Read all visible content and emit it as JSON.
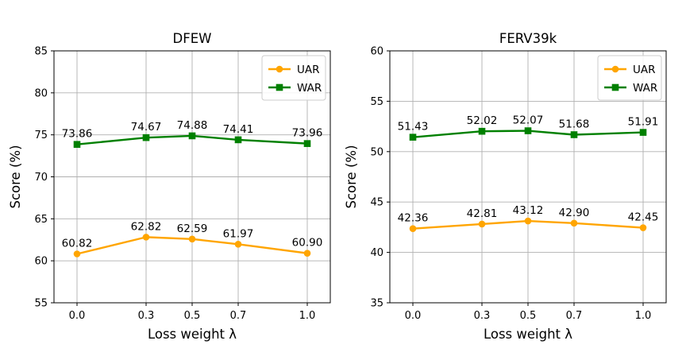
{
  "chart_data": [
    {
      "type": "line",
      "title": "DFEW",
      "xlabel": "Loss weight λ",
      "ylabel": "Score (%)",
      "categories": [
        "0.0",
        "0.3",
        "0.5",
        "0.7",
        "1.0"
      ],
      "x": [
        0.0,
        0.3,
        0.5,
        0.7,
        1.0
      ],
      "ylim": [
        55,
        85
      ],
      "yticks": [
        55,
        60,
        65,
        70,
        75,
        80,
        85
      ],
      "grid": true,
      "legend_position": "top-right",
      "series": [
        {
          "name": "UAR",
          "values": [
            60.82,
            62.82,
            62.59,
            61.97,
            60.9
          ],
          "labels": [
            "60.82",
            "62.82",
            "62.59",
            "61.97",
            "60.90"
          ],
          "color": "#FFA500",
          "marker": "circle"
        },
        {
          "name": "WAR",
          "values": [
            73.86,
            74.67,
            74.88,
            74.41,
            73.96
          ],
          "labels": [
            "73.86",
            "74.67",
            "74.88",
            "74.41",
            "73.96"
          ],
          "color": "#008000",
          "marker": "square"
        }
      ]
    },
    {
      "type": "line",
      "title": "FERV39k",
      "xlabel": "Loss weight λ",
      "ylabel": "Score (%)",
      "categories": [
        "0.0",
        "0.3",
        "0.5",
        "0.7",
        "1.0"
      ],
      "x": [
        0.0,
        0.3,
        0.5,
        0.7,
        1.0
      ],
      "ylim": [
        35,
        60
      ],
      "yticks": [
        35,
        40,
        45,
        50,
        55,
        60
      ],
      "grid": true,
      "legend_position": "top-right",
      "series": [
        {
          "name": "UAR",
          "values": [
            42.36,
            42.81,
            43.12,
            42.9,
            42.45
          ],
          "labels": [
            "42.36",
            "42.81",
            "43.12",
            "42.90",
            "42.45"
          ],
          "color": "#FFA500",
          "marker": "circle"
        },
        {
          "name": "WAR",
          "values": [
            51.43,
            52.02,
            52.07,
            51.68,
            51.91
          ],
          "labels": [
            "51.43",
            "52.02",
            "52.07",
            "51.68",
            "51.91"
          ],
          "color": "#008000",
          "marker": "square"
        }
      ]
    }
  ]
}
